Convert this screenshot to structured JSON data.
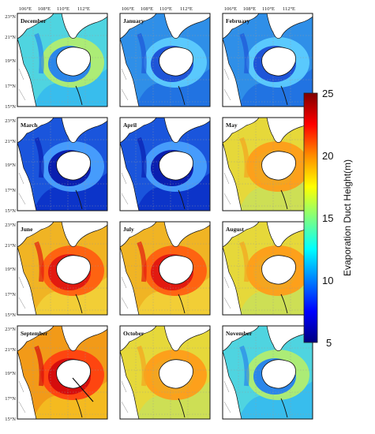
{
  "figure": {
    "lon_ticks": [
      "106°E",
      "108°E",
      "110°E",
      "112°E"
    ],
    "lat_ticks": [
      "23°N",
      "21°N",
      "19°N",
      "17°N",
      "15°N"
    ],
    "panels": [
      {
        "month": "December",
        "level": "low"
      },
      {
        "month": "January",
        "level": "vlow"
      },
      {
        "month": "February",
        "level": "vlow"
      },
      {
        "month": "March",
        "level": "min"
      },
      {
        "month": "April",
        "level": "min"
      },
      {
        "month": "May",
        "level": "mid"
      },
      {
        "month": "June",
        "level": "high"
      },
      {
        "month": "July",
        "level": "high"
      },
      {
        "month": "August",
        "level": "mid"
      },
      {
        "month": "September",
        "level": "max"
      },
      {
        "month": "October",
        "level": "mid"
      },
      {
        "month": "November",
        "level": "low"
      }
    ]
  },
  "colorbar": {
    "label": "Evaporation Duct Height(m)",
    "ticks": [
      25,
      20,
      15,
      10,
      5
    ],
    "range": [
      5,
      25
    ],
    "colors": [
      "#7f0000",
      "#ff0000",
      "#ff8c00",
      "#ffff00",
      "#7fff7f",
      "#00ffff",
      "#0080ff",
      "#0000ff",
      "#00007f"
    ]
  }
}
